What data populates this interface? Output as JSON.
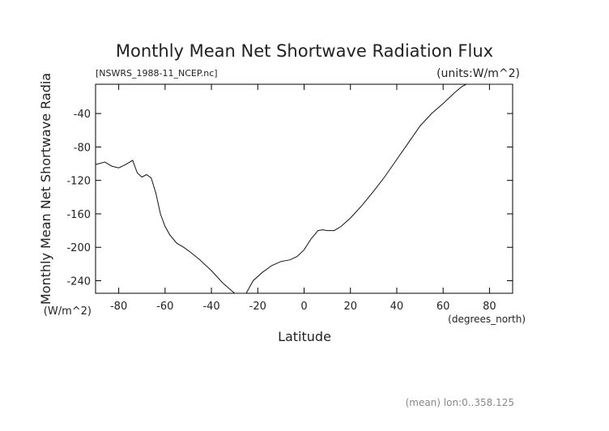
{
  "chart_data": {
    "type": "line",
    "title": "Monthly Mean Net Shortwave Radiation Flux",
    "subtitle": "[NSWRS_1988-11_NCEP.nc]",
    "units_label": "(units:W/m^2)",
    "xlabel": "Latitude",
    "x_units": "(degrees_north)",
    "ylabel": "Monthly Mean Net Shortwave Radia",
    "y_units": "(W/m^2)",
    "footnote": "(mean) lon:0..358.125",
    "xlim": [
      -90,
      90
    ],
    "ylim": [
      -255,
      -5
    ],
    "x_ticks": [
      -80,
      -60,
      -40,
      -20,
      0,
      20,
      40,
      60,
      80
    ],
    "x_tick_labels": [
      "-80",
      "-60",
      "-40",
      "-20",
      "0",
      "20",
      "40",
      "60",
      "80"
    ],
    "y_ticks": [
      -240,
      -200,
      -160,
      -120,
      -80,
      -40
    ],
    "y_tick_labels": [
      "-240",
      "-200",
      "-160",
      "-120",
      "-80",
      "-40"
    ],
    "grid": false,
    "series": [
      {
        "x": [
          -90,
          -86,
          -83,
          -80,
          -77,
          -74,
          -72,
          -70,
          -68,
          -66,
          -64,
          -62,
          -60,
          -58,
          -55,
          -52,
          -49,
          -45,
          -40,
          -35,
          -30,
          -27,
          -25,
          -22,
          -18,
          -14,
          -10,
          -6,
          -3,
          0,
          3,
          6,
          8,
          10,
          13,
          16,
          20,
          25,
          30,
          35,
          40,
          45,
          50,
          55,
          60,
          65,
          68,
          70,
          72,
          75,
          80,
          85,
          90
        ],
        "y": [
          -101,
          -98,
          -103,
          -105,
          -101,
          -96,
          -111,
          -116,
          -113,
          -117,
          -135,
          -160,
          -175,
          -185,
          -195,
          -200,
          -206,
          -215,
          -228,
          -243,
          -255,
          -257,
          -255,
          -240,
          -230,
          -222,
          -217,
          -215,
          -211,
          -203,
          -190,
          -180,
          -179,
          -180,
          -180,
          -175,
          -165,
          -150,
          -133,
          -115,
          -95,
          -75,
          -55,
          -40,
          -28,
          -15,
          -8,
          -4,
          -3,
          -2,
          -2,
          -2,
          -2
        ]
      }
    ]
  }
}
